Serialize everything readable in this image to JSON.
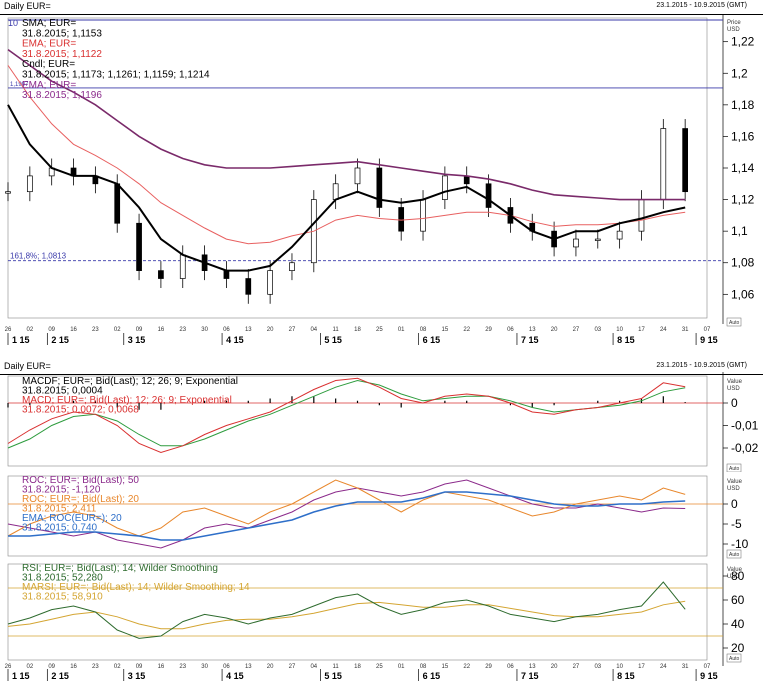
{
  "window": {
    "title": "Daily EUR=",
    "date_range": "23.1.2015 - 10.9.2015 (GMT)",
    "price_unit_title": "Price",
    "price_unit": "USD"
  },
  "x_axis": {
    "day_labels": [
      "26",
      "02",
      "09",
      "16",
      "23",
      "02",
      "09",
      "16",
      "23",
      "30",
      "06",
      "13",
      "20",
      "27",
      "04",
      "11",
      "18",
      "25",
      "01",
      "08",
      "15",
      "22",
      "29",
      "06",
      "13",
      "20",
      "27",
      "03",
      "10",
      "17",
      "24",
      "31",
      "07"
    ],
    "month_labels": [
      "1 15",
      "2 15",
      "3 15",
      "4 15",
      "5 15",
      "6 15",
      "7 15",
      "8 15",
      "9 15"
    ]
  },
  "price_panel": {
    "legend": [
      {
        "text": "SMA; EUR=",
        "color": "#000000"
      },
      {
        "text": "31.8.2015; 1,1153",
        "color": "#000000"
      },
      {
        "text": "EMA; EUR=",
        "color": "#d93030"
      },
      {
        "text": "31.8.2015; 1,1122",
        "color": "#d93030"
      },
      {
        "text": "Cndl; EUR=",
        "color": "#000000"
      },
      {
        "text": "31.8.2015; 1,1173; 1,1261; 1,1159; 1,1214",
        "color": "#000000"
      },
      {
        "text": "EMA; EUR=",
        "color": "#8b2a8b"
      },
      {
        "text": "31.8.2015; 1,1196",
        "color": "#8b2a8b"
      }
    ],
    "legend_prefix": "10",
    "ticks": [
      "1,22",
      "1,2",
      "1,18",
      "1,16",
      "1,14",
      "1,12",
      "1,1",
      "1,08",
      "1,06"
    ],
    "hline_label": "1,1907",
    "fib_label": "161,8%; 1,0813",
    "auto_label": "Auto"
  },
  "macd_panel": {
    "legend": [
      {
        "text": "MACDF; EUR=; Bid(Last); 12; 26; 9; Exponential",
        "color": "#000000"
      },
      {
        "text": "31.8.2015; 0,0004",
        "color": "#000000"
      },
      {
        "text": "MACD; EUR=; Bid(Last); 12; 26; 9; Exponential",
        "color": "#d93030"
      },
      {
        "text": "31.8.2015; 0,0072; 0,0068",
        "color": "#d93030"
      }
    ],
    "ticks": [
      "0",
      "-0,01",
      "-0,02"
    ],
    "value_title": "Value",
    "value_unit": "USD",
    "auto_label": "Auto"
  },
  "roc_panel": {
    "legend": [
      {
        "text": "ROC; EUR=; Bid(Last); 50",
        "color": "#8b2a8b"
      },
      {
        "text": "31.8.2015; -1,120",
        "color": "#8b2a8b"
      },
      {
        "text": "ROC; EUR=; Bid(Last); 20",
        "color": "#e8872c"
      },
      {
        "text": "31.8.2015; 2,411",
        "color": "#e8872c"
      },
      {
        "text": "EMA; ROC(EUR=); 20",
        "color": "#2e6fc9"
      },
      {
        "text": "31.8.2015; 0,740",
        "color": "#2e6fc9"
      }
    ],
    "ticks": [
      "0",
      "-5",
      "-10"
    ],
    "value_title": "Value",
    "value_unit": "USD",
    "auto_label": "Auto"
  },
  "rsi_panel": {
    "legend": [
      {
        "text": "RSI; EUR=; Bid(Last); 14; Wilder Smoothing",
        "color": "#2e6b2e"
      },
      {
        "text": "31.8.2015; 52,280",
        "color": "#2e6b2e"
      },
      {
        "text": "MARSI; EUR=; Bid(Last); 14; Wilder Smoothing; 14",
        "color": "#d4a532"
      },
      {
        "text": "31.8.2015; 58,910",
        "color": "#d4a532"
      }
    ],
    "ticks": [
      "80",
      "60",
      "40",
      "20"
    ],
    "value_title": "Value",
    "value_unit": "USD",
    "auto_label": "Auto"
  },
  "chart_data": [
    {
      "type": "line",
      "title": "Daily EUR=",
      "ylim": [
        1.045,
        1.235
      ],
      "x": [
        "26",
        "02",
        "09",
        "16",
        "23",
        "02",
        "09",
        "16",
        "23",
        "30",
        "06",
        "13",
        "20",
        "27",
        "04",
        "11",
        "18",
        "25",
        "01",
        "08",
        "15",
        "22",
        "29",
        "06",
        "13",
        "20",
        "27",
        "03",
        "10",
        "17",
        "24",
        "31",
        "07"
      ],
      "series": [
        {
          "name": "Cndl; EUR=",
          "values": [
            1.125,
            1.135,
            1.14,
            1.135,
            1.13,
            1.105,
            1.075,
            1.07,
            1.085,
            1.075,
            1.07,
            1.06,
            1.075,
            1.08,
            1.12,
            1.13,
            1.14,
            1.115,
            1.1,
            1.12,
            1.135,
            1.13,
            1.115,
            1.105,
            1.1,
            1.09,
            1.095,
            1.095,
            1.1,
            1.12,
            1.165,
            1.125,
            null
          ]
        },
        {
          "name": "SMA; EUR=",
          "values": [
            1.18,
            1.155,
            1.14,
            1.135,
            1.135,
            1.13,
            1.115,
            1.095,
            1.085,
            1.08,
            1.075,
            1.075,
            1.078,
            1.09,
            1.105,
            1.12,
            1.125,
            1.12,
            1.118,
            1.12,
            1.125,
            1.128,
            1.12,
            1.11,
            1.1,
            1.095,
            1.1,
            1.1,
            1.105,
            1.108,
            1.112,
            1.115,
            null
          ]
        },
        {
          "name": "EMA; EUR=",
          "values": [
            1.205,
            1.185,
            1.168,
            1.155,
            1.148,
            1.14,
            1.13,
            1.118,
            1.11,
            1.102,
            1.095,
            1.092,
            1.093,
            1.097,
            1.1,
            1.107,
            1.11,
            1.108,
            1.107,
            1.108,
            1.11,
            1.112,
            1.112,
            1.11,
            1.106,
            1.103,
            1.104,
            1.104,
            1.105,
            1.107,
            1.11,
            1.112,
            null
          ]
        },
        {
          "name": "EMA; EUR= (purple)",
          "values": [
            1.215,
            1.205,
            1.195,
            1.188,
            1.18,
            1.17,
            1.16,
            1.152,
            1.146,
            1.142,
            1.14,
            1.14,
            1.14,
            1.141,
            1.142,
            1.143,
            1.144,
            1.142,
            1.14,
            1.138,
            1.136,
            1.135,
            1.133,
            1.13,
            1.126,
            1.123,
            1.122,
            1.121,
            1.12,
            1.12,
            1.12,
            1.12,
            null
          ]
        }
      ]
    },
    {
      "type": "line",
      "title": "MACD",
      "ylim": [
        -0.028,
        0.012
      ],
      "x": [
        "26",
        "02",
        "09",
        "16",
        "23",
        "02",
        "09",
        "16",
        "23",
        "30",
        "06",
        "13",
        "20",
        "27",
        "04",
        "11",
        "18",
        "25",
        "01",
        "08",
        "15",
        "22",
        "29",
        "06",
        "13",
        "20",
        "27",
        "03",
        "10",
        "17",
        "24",
        "31",
        "07"
      ],
      "series": [
        {
          "name": "MACDF; EUR=",
          "values": [
            -0.002,
            -0.001,
            0.0,
            0.001,
            0.001,
            -0.002,
            -0.003,
            -0.003,
            0.0,
            0.001,
            0.001,
            0.001,
            0.002,
            0.003,
            0.003,
            0.002,
            0.001,
            -0.001,
            -0.002,
            0.0,
            0.001,
            0.001,
            0.0,
            -0.001,
            -0.002,
            -0.001,
            0.0,
            0.001,
            0.001,
            0.002,
            0.003,
            0.0004,
            null
          ]
        },
        {
          "name": "MACD; EUR=",
          "values": [
            -0.018,
            -0.012,
            -0.007,
            -0.004,
            -0.005,
            -0.01,
            -0.018,
            -0.022,
            -0.019,
            -0.014,
            -0.01,
            -0.007,
            -0.004,
            0.001,
            0.006,
            0.01,
            0.011,
            0.007,
            0.002,
            0.0,
            0.003,
            0.004,
            0.003,
            0.0,
            -0.004,
            -0.005,
            -0.003,
            -0.002,
            0.0,
            0.002,
            0.009,
            0.0072,
            null
          ]
        },
        {
          "name": "MACD signal",
          "values": [
            -0.02,
            -0.016,
            -0.01,
            -0.006,
            -0.005,
            -0.008,
            -0.014,
            -0.019,
            -0.019,
            -0.016,
            -0.012,
            -0.008,
            -0.005,
            -0.001,
            0.003,
            0.007,
            0.01,
            0.008,
            0.004,
            0.001,
            0.002,
            0.003,
            0.003,
            0.001,
            -0.002,
            -0.004,
            -0.003,
            -0.002,
            -0.001,
            0.001,
            0.005,
            0.0068,
            null
          ]
        }
      ]
    },
    {
      "type": "line",
      "title": "ROC",
      "ylim": [
        -13,
        7
      ],
      "x": [
        "26",
        "02",
        "09",
        "16",
        "23",
        "02",
        "09",
        "16",
        "23",
        "30",
        "06",
        "13",
        "20",
        "27",
        "04",
        "11",
        "18",
        "25",
        "01",
        "08",
        "15",
        "22",
        "29",
        "06",
        "13",
        "20",
        "27",
        "03",
        "10",
        "17",
        "24",
        "31",
        "07"
      ],
      "series": [
        {
          "name": "ROC; EUR=; Bid(Last); 50",
          "values": [
            -5,
            -6,
            -7,
            -8,
            -7,
            -9,
            -10,
            -11,
            -9,
            -6,
            -5,
            -6,
            -4,
            -2,
            1,
            3,
            4,
            3,
            2,
            3,
            5,
            6,
            4,
            2,
            0,
            -1,
            -1,
            0,
            -1,
            -2,
            -1,
            -1.12,
            null
          ]
        },
        {
          "name": "ROC; EUR=; Bid(Last); 20",
          "values": [
            -8,
            -5,
            -3,
            -2,
            -3,
            -6,
            -8,
            -6,
            -2,
            -1,
            -3,
            -5,
            -2,
            0,
            3,
            6,
            4,
            1,
            -2,
            1,
            3,
            2,
            1,
            -1,
            -3,
            -2,
            0,
            1,
            2,
            1,
            4,
            2.411,
            null
          ]
        },
        {
          "name": "EMA; ROC(EUR=); 20",
          "values": [
            -8,
            -8,
            -7.5,
            -7,
            -7,
            -7.5,
            -8,
            -9,
            -9,
            -8,
            -7,
            -6,
            -5,
            -4,
            -2,
            -0.5,
            0.5,
            0.5,
            0.5,
            1.5,
            3,
            3,
            2.5,
            2,
            1,
            0,
            -0.5,
            -0.5,
            0,
            0,
            0.5,
            0.74,
            null
          ]
        }
      ]
    },
    {
      "type": "line",
      "title": "RSI",
      "ylim": [
        10,
        90
      ],
      "x": [
        "26",
        "02",
        "09",
        "16",
        "23",
        "02",
        "09",
        "16",
        "23",
        "30",
        "06",
        "13",
        "20",
        "27",
        "04",
        "11",
        "18",
        "25",
        "01",
        "08",
        "15",
        "22",
        "29",
        "06",
        "13",
        "20",
        "27",
        "03",
        "10",
        "17",
        "24",
        "31",
        "07"
      ],
      "series": [
        {
          "name": "RSI; EUR=; Bid(Last); 14; Wilder Smoothing",
          "values": [
            40,
            45,
            52,
            55,
            50,
            35,
            28,
            30,
            42,
            48,
            45,
            40,
            45,
            48,
            55,
            62,
            65,
            55,
            48,
            52,
            58,
            60,
            55,
            48,
            45,
            42,
            46,
            48,
            52,
            55,
            75,
            52.28,
            null
          ]
        },
        {
          "name": "MARSI; EUR=; Bid(Last); 14; Wilder Smoothing; 14",
          "values": [
            38,
            40,
            44,
            48,
            50,
            46,
            40,
            36,
            36,
            40,
            43,
            44,
            44,
            46,
            49,
            53,
            57,
            58,
            56,
            54,
            54,
            56,
            56,
            53,
            50,
            47,
            46,
            46,
            48,
            50,
            56,
            58.91,
            null
          ]
        }
      ],
      "reference_lines": [
        70,
        30
      ]
    }
  ],
  "colors": {
    "macdf_bars": "#000000",
    "macd": "#d93030",
    "signal": "#2e9c3e",
    "sma": "#000000",
    "ema_red": "#e86060",
    "ema_purple": "#7a2a6a",
    "roc50": "#8b2a8b",
    "roc20": "#e8872c",
    "ema_roc": "#2e6fc9",
    "rsi": "#2e6b2e",
    "marsi": "#d4a532",
    "fib": "#3a3aaa",
    "hline": "#3a3aaa"
  }
}
